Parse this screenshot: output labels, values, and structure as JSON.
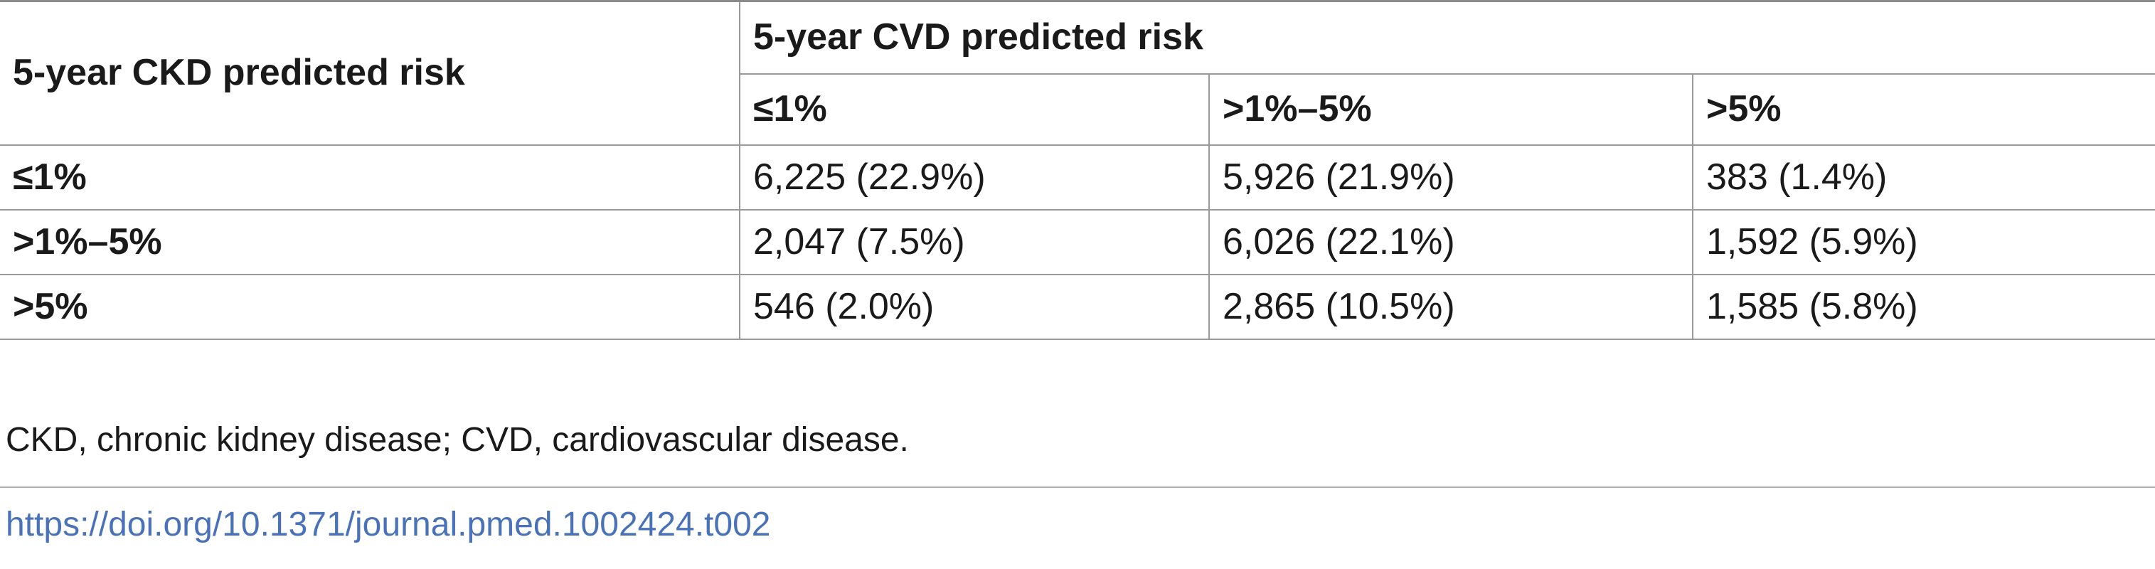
{
  "table": {
    "row_header": "5-year CKD predicted risk",
    "group_header": "5-year CVD predicted risk",
    "columns": [
      "≤1%",
      ">1%–5%",
      ">5%"
    ],
    "rows": [
      {
        "label": "≤1%",
        "cells": [
          "6,225 (22.9%)",
          "5,926 (21.9%)",
          "383 (1.4%)"
        ]
      },
      {
        "label": ">1%–5%",
        "cells": [
          "2,047 (7.5%)",
          "6,026 (22.1%)",
          "1,592 (5.9%)"
        ]
      },
      {
        "label": ">5%",
        "cells": [
          "546 (2.0%)",
          "2,865 (10.5%)",
          "1,585 (5.8%)"
        ]
      }
    ]
  },
  "footnote": "CKD, chronic kidney disease; CVD, cardiovascular disease.",
  "doi": "https://doi.org/10.1371/journal.pmed.1002424.t002",
  "colors": {
    "text": "#1a1a1a",
    "rule": "#9a9a9a",
    "link": "#4a72b8"
  }
}
